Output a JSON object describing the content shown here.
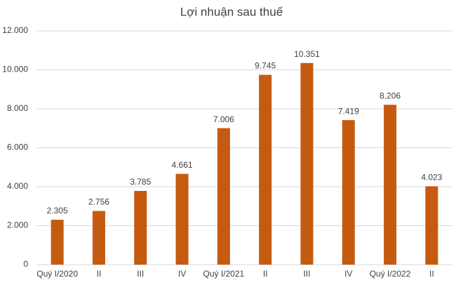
{
  "chart_data": {
    "type": "bar",
    "title": "Lợi nhuận sau thuế",
    "categories": [
      "Quý I/2020",
      "II",
      "III",
      "IV",
      "Quý I/2021",
      "II",
      "III",
      "IV",
      "Quý I/2022",
      "II"
    ],
    "values": [
      2305,
      2756,
      3785,
      4661,
      7006,
      9745,
      10351,
      7419,
      8206,
      4023
    ],
    "value_labels": [
      "2.305",
      "2.756",
      "3.785",
      "4.661",
      "7.006",
      "9.745",
      "10.351",
      "7.419",
      "8.206",
      "4.023"
    ],
    "color": "#c55a11",
    "ylim": [
      0,
      12000
    ],
    "yticks": [
      0,
      {
        "value": 2000,
        "label": "2.000"
      },
      {
        "value": 4000,
        "label": "4.000"
      },
      {
        "value": 6000,
        "label": "6.000"
      },
      {
        "value": 8000,
        "label": "8.000"
      },
      {
        "value": 10000,
        "label": "10.000"
      },
      {
        "value": 12000,
        "label": "12.000"
      }
    ],
    "grid": true
  }
}
